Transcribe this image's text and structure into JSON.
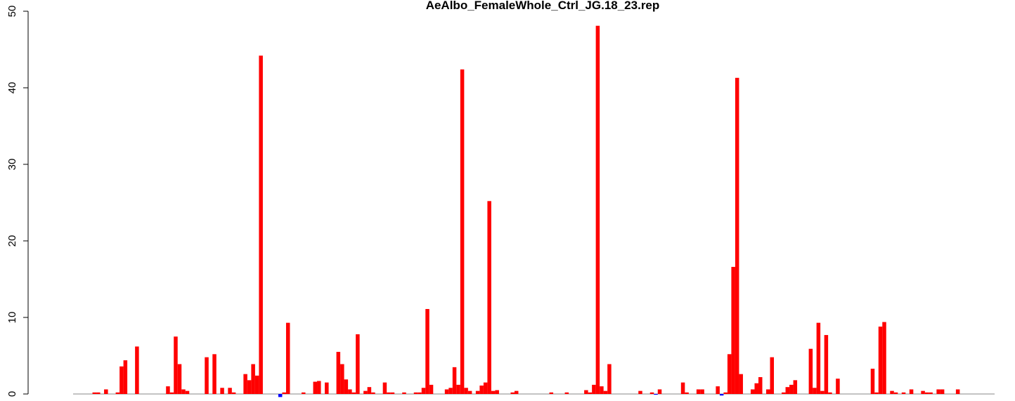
{
  "chart_data": {
    "type": "bar",
    "title": "AeAlbo_FemaleWhole_Ctrl_JG.18_23.rep",
    "values": [
      0,
      0,
      0,
      0,
      0,
      0.2,
      0.2,
      0,
      0.6,
      0,
      0,
      0.2,
      3.6,
      4.4,
      0,
      0,
      6.2,
      0,
      0,
      0,
      0,
      0,
      0,
      0,
      1.0,
      0.2,
      7.5,
      3.9,
      0.6,
      0.4,
      0,
      0,
      0,
      0,
      4.8,
      0,
      5.2,
      0,
      0.8,
      0,
      0.8,
      0.2,
      0,
      0,
      2.6,
      1.8,
      3.9,
      2.4,
      44.2,
      0,
      0,
      0,
      0,
      -0.4,
      0.2,
      9.3,
      0,
      0,
      0,
      0.2,
      0,
      0,
      1.6,
      1.7,
      0,
      1.5,
      0,
      0,
      5.5,
      3.9,
      1.9,
      0.6,
      0.2,
      7.8,
      0,
      0.4,
      0.9,
      0.2,
      0,
      0,
      1.5,
      0.2,
      0.2,
      0,
      0,
      0.2,
      0,
      0,
      0.2,
      0.2,
      0.8,
      11.1,
      1.2,
      0,
      0,
      0,
      0.6,
      0.8,
      3.5,
      1.2,
      42.4,
      0.8,
      0.4,
      0,
      0.4,
      1.1,
      1.5,
      25.2,
      0.4,
      0.5,
      0,
      0,
      0,
      0.2,
      0.4,
      0,
      0,
      0,
      0,
      0,
      0,
      0,
      0,
      0.2,
      0,
      0,
      0,
      0.2,
      0,
      0,
      0,
      0,
      0.5,
      0.2,
      1.2,
      48.1,
      1.0,
      0.4,
      3.9,
      0,
      0,
      0,
      0,
      0,
      0,
      0,
      0.4,
      0,
      0,
      0.2,
      -0.1,
      0.6,
      0,
      0,
      0,
      0,
      0,
      1.5,
      0.2,
      0,
      0,
      0.6,
      0.6,
      0,
      0,
      0,
      1.0,
      -0.2,
      0.2,
      5.2,
      16.6,
      41.3,
      2.6,
      0,
      0,
      0.6,
      1.4,
      2.2,
      0,
      0.6,
      4.8,
      0,
      0,
      0.2,
      0.9,
      1.2,
      1.8,
      0,
      0,
      0,
      5.9,
      0.8,
      9.3,
      0.4,
      7.7,
      0.2,
      0,
      2.0,
      0,
      0,
      0,
      0,
      0,
      0,
      0,
      0,
      3.3,
      0.2,
      8.8,
      9.4,
      0,
      0.4,
      0.2,
      0,
      0.2,
      0,
      0.6,
      0,
      0,
      0.4,
      0.2,
      0.2,
      0,
      0.6,
      0.6,
      0,
      0,
      0,
      0.6,
      0,
      0,
      0,
      0,
      0,
      0,
      0,
      0,
      0
    ],
    "positive_color": "#ff0000",
    "negative_color": "#0000ff",
    "ylim": [
      0,
      50
    ],
    "yticks": [
      0,
      10,
      20,
      30,
      40,
      50
    ]
  }
}
